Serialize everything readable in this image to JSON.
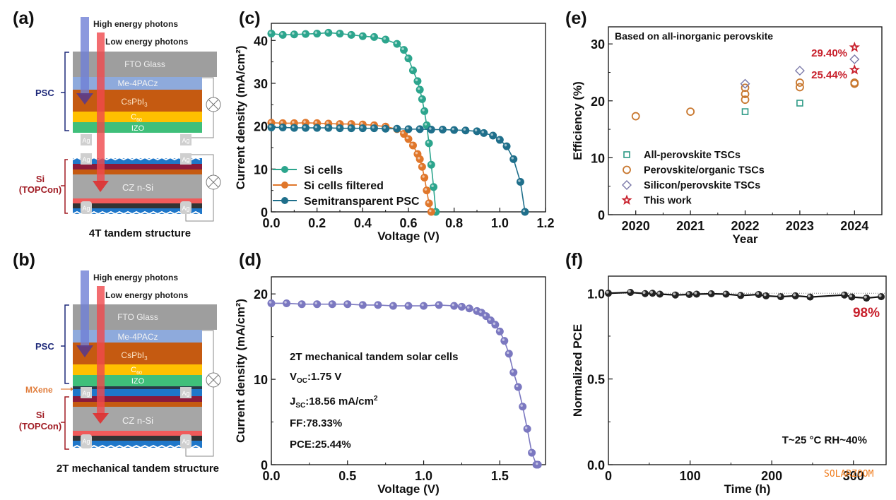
{
  "panels": {
    "a": {
      "label": "(a)",
      "caption": "4T tandem structure"
    },
    "b": {
      "label": "(b)",
      "caption": "2T mechanical tandem structure"
    },
    "c": {
      "label": "(c)"
    },
    "d": {
      "label": "(d)"
    },
    "e": {
      "label": "(e)"
    },
    "f": {
      "label": "(f)"
    }
  },
  "diagram": {
    "photon_high": "High energy photons",
    "photon_low": "Low energy photons",
    "layers": {
      "fto": "FTO Glass",
      "me4pacz": "Me-4PACz",
      "cspbi3": "CsPbI",
      "cspbi3_sub": "3",
      "c60": "C",
      "c60_sub": "60",
      "izo": "IZO",
      "czsi": "CZ n-Si",
      "ag": "Ag"
    },
    "psc_label": "PSC",
    "si_label_1": "Si",
    "si_label_2": "(TOPCon)",
    "mxene_label": "MXene",
    "colors": {
      "fto": "#9e9e9e",
      "me4pacz": "#8eaadc",
      "cspbi3": "#c55a11",
      "c60": "#ffc000",
      "izo": "#3fbf7a",
      "czsi": "#a6a6a6",
      "psc_text": "#1f2a7a",
      "si_text": "#a01c24",
      "mxene_text": "#e07b39",
      "high_arrow": "#6f7fd6",
      "low_arrow": "#f0494c"
    }
  },
  "chart_data": [
    {
      "id": "c",
      "type": "line",
      "title": "",
      "xlabel": "Voltage (V)",
      "ylabel": "Current density (mA/cm²)",
      "xlim": [
        0,
        1.2
      ],
      "ylim": [
        0,
        44
      ],
      "xticks": [
        "0.0",
        "0.2",
        "0.4",
        "0.6",
        "0.8",
        "1.0",
        "1.2"
      ],
      "yticks": [
        "0",
        "10",
        "20",
        "30",
        "40"
      ],
      "legend_position": "bottom-left",
      "series": [
        {
          "name": "Si cells",
          "color": "#2ca58d",
          "x": [
            0,
            0.05,
            0.1,
            0.15,
            0.2,
            0.25,
            0.3,
            0.35,
            0.4,
            0.45,
            0.5,
            0.55,
            0.58,
            0.6,
            0.62,
            0.64,
            0.65,
            0.66,
            0.67,
            0.68,
            0.69,
            0.7,
            0.71,
            0.72
          ],
          "y": [
            41.6,
            41.3,
            41.4,
            41.5,
            41.6,
            41.8,
            41.6,
            41.3,
            41.0,
            40.8,
            40.2,
            39.2,
            37.8,
            35.8,
            33.0,
            30.5,
            28.5,
            26.3,
            23.5,
            20.2,
            16.0,
            11.0,
            5.8,
            0
          ]
        },
        {
          "name": "Si cells filtered",
          "color": "#e0772b",
          "x": [
            0,
            0.05,
            0.1,
            0.15,
            0.2,
            0.25,
            0.3,
            0.35,
            0.4,
            0.45,
            0.5,
            0.55,
            0.58,
            0.6,
            0.62,
            0.64,
            0.65,
            0.66,
            0.67,
            0.68,
            0.69,
            0.7
          ],
          "y": [
            20.8,
            20.7,
            20.7,
            20.8,
            20.7,
            20.6,
            20.5,
            20.5,
            20.4,
            20.2,
            19.9,
            19.3,
            18.2,
            17.0,
            15.5,
            13.5,
            12.3,
            10.5,
            8.0,
            5.0,
            2.0,
            0
          ]
        },
        {
          "name": "Semitransparent PSC",
          "color": "#1f6f8b",
          "x": [
            0,
            0.05,
            0.1,
            0.15,
            0.2,
            0.25,
            0.3,
            0.35,
            0.4,
            0.45,
            0.5,
            0.55,
            0.6,
            0.65,
            0.7,
            0.75,
            0.8,
            0.85,
            0.9,
            0.93,
            0.97,
            1.0,
            1.03,
            1.06,
            1.09,
            1.11
          ],
          "y": [
            19.7,
            19.7,
            19.6,
            19.6,
            19.6,
            19.6,
            19.5,
            19.5,
            19.5,
            19.5,
            19.4,
            19.4,
            19.3,
            19.3,
            19.2,
            19.2,
            19.1,
            19.0,
            18.8,
            18.4,
            17.8,
            16.8,
            15.3,
            12.3,
            7.0,
            0
          ]
        }
      ]
    },
    {
      "id": "d",
      "type": "line",
      "title": "",
      "xlabel": "Voltage (V)",
      "ylabel": "Current density (mA/cm²)",
      "xlim": [
        0,
        1.8
      ],
      "ylim": [
        0,
        22
      ],
      "xticks": [
        "0.0",
        "0.5",
        "1.0",
        "1.5"
      ],
      "yticks": [
        "0",
        "10",
        "20"
      ],
      "series": [
        {
          "name": "2T mechanical tandem",
          "color": "#7b78c0",
          "x": [
            0,
            0.1,
            0.2,
            0.3,
            0.4,
            0.5,
            0.6,
            0.7,
            0.8,
            0.9,
            1.0,
            1.1,
            1.2,
            1.25,
            1.3,
            1.35,
            1.38,
            1.41,
            1.44,
            1.47,
            1.5,
            1.53,
            1.56,
            1.59,
            1.62,
            1.65,
            1.68,
            1.71,
            1.74,
            1.75
          ],
          "y": [
            18.9,
            18.9,
            18.8,
            18.8,
            18.8,
            18.8,
            18.7,
            18.7,
            18.6,
            18.6,
            18.6,
            18.7,
            18.6,
            18.5,
            18.3,
            18.0,
            17.8,
            17.4,
            16.9,
            16.4,
            15.6,
            14.5,
            13.0,
            10.8,
            9.1,
            6.8,
            4.2,
            1.4,
            0,
            0
          ]
        }
      ],
      "annotation": {
        "title": "2T mechanical tandem solar cells",
        "voc_label": "V",
        "voc_sub": "OC",
        "voc_value": ":1.75 V",
        "jsc_label": "J",
        "jsc_sub": "SC",
        "jsc_value": ":18.56 mA/cm",
        "jsc_sup": "2",
        "ff": "FF:78.33%",
        "pce": "PCE:25.44%"
      }
    },
    {
      "id": "e",
      "type": "scatter",
      "title": "Based on all-inorganic perovskite",
      "xlabel": "Year",
      "ylabel": "Efficiency (%)",
      "xlim": [
        2019.5,
        2024.5
      ],
      "ylim": [
        0,
        33
      ],
      "xticks": [
        "2020",
        "2021",
        "2022",
        "2023",
        "2024"
      ],
      "yticks": [
        "0",
        "10",
        "20",
        "30"
      ],
      "legend_position": "bottom-left",
      "series": [
        {
          "name": "All-perovskite TSCs",
          "marker": "square",
          "color": "#2e9a86",
          "x": [
            2022,
            2023
          ],
          "y": [
            18.1,
            19.6
          ]
        },
        {
          "name": "Perovskite/organic TSCs",
          "marker": "circle",
          "color": "#c8772e",
          "x": [
            2020,
            2021,
            2022,
            2022,
            2022,
            2023,
            2023,
            2024,
            2024
          ],
          "y": [
            17.3,
            18.1,
            20.2,
            21.2,
            22.3,
            22.4,
            23.2,
            23.0,
            23.2
          ]
        },
        {
          "name": "Silicon/perovskite TSCs",
          "marker": "diamond",
          "color": "#7a78a8",
          "x": [
            2022,
            2023,
            2024
          ],
          "y": [
            23.0,
            25.3,
            27.3
          ]
        },
        {
          "name": "This work",
          "marker": "star",
          "color": "#c8202c",
          "x": [
            2024,
            2024
          ],
          "y": [
            29.4,
            25.44
          ]
        }
      ],
      "annotations": [
        "29.40%",
        "25.44%"
      ]
    },
    {
      "id": "f",
      "type": "line",
      "title": "",
      "xlabel": "Time (h)",
      "ylabel": "Normalized PCE",
      "xlim": [
        0,
        340
      ],
      "ylim": [
        0,
        1.1
      ],
      "xticks": [
        "0",
        "100",
        "200",
        "300"
      ],
      "yticks": [
        "0.0",
        "0.5",
        "1.0"
      ],
      "reference_line": 1.0,
      "series": [
        {
          "name": "Normalized PCE",
          "color": "#111111",
          "x": [
            0,
            27,
            45,
            54,
            63,
            82,
            99,
            108,
            126,
            144,
            162,
            184,
            193,
            211,
            229,
            247,
            289,
            298,
            316,
            334
          ],
          "y": [
            1.0,
            1.005,
            0.998,
            1.0,
            0.995,
            0.99,
            0.993,
            0.995,
            0.997,
            0.995,
            0.987,
            0.993,
            0.985,
            0.98,
            0.985,
            0.978,
            0.99,
            0.978,
            0.972,
            0.98
          ]
        }
      ],
      "annotation": "98%",
      "conditions": "T~25 °C   RH~40%"
    }
  ],
  "watermark": "SOLARZOOM"
}
